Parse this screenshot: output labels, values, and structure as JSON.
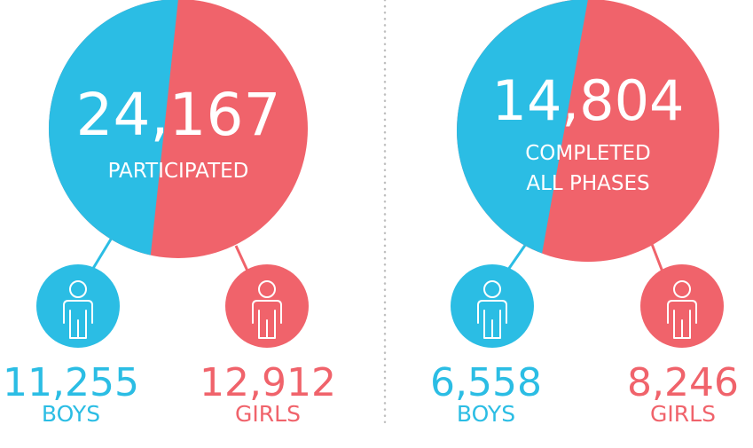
{
  "colors": {
    "boys": "#2bbde4",
    "girls": "#f0636b",
    "divider": "#bfbfbf",
    "text_on_pie": "#ffffff"
  },
  "chart_data": [
    {
      "type": "pie",
      "total": "24,167",
      "subtitle_lines": [
        "PARTICIPATED"
      ],
      "slices": [
        {
          "name": "BOYS",
          "value": 11255,
          "value_label": "11,255",
          "color": "#2bbde4",
          "icon": "person-icon"
        },
        {
          "name": "GIRLS",
          "value": 12912,
          "value_label": "12,912",
          "color": "#f0636b",
          "icon": "person-icon"
        }
      ]
    },
    {
      "type": "pie",
      "total": "14,804",
      "subtitle_lines": [
        "COMPLETED",
        "ALL PHASES"
      ],
      "slices": [
        {
          "name": "BOYS",
          "value": 6558,
          "value_label": "6,558",
          "color": "#2bbde4",
          "icon": "person-icon"
        },
        {
          "name": "GIRLS",
          "value": 8246,
          "value_label": "8,246",
          "color": "#f0636b",
          "icon": "person-icon"
        }
      ]
    }
  ]
}
